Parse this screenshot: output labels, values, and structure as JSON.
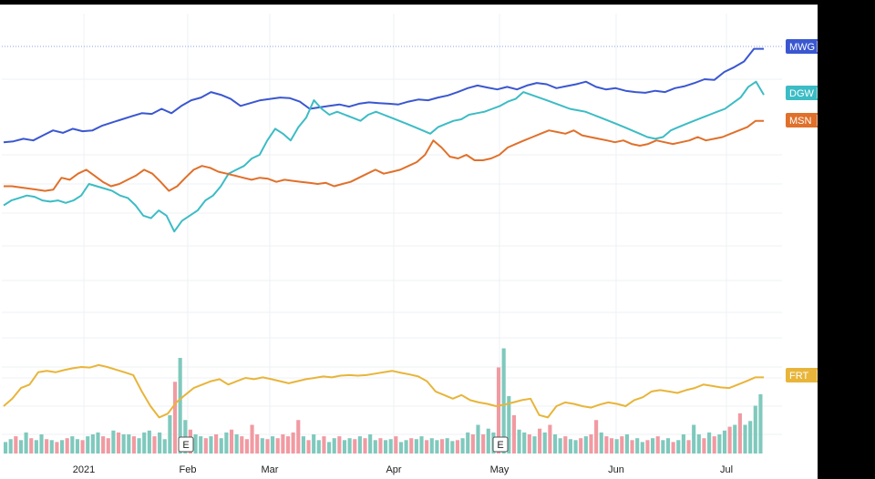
{
  "chart_data": {
    "type": "line",
    "currency": "VND",
    "y_axis_ticks": [
      150000,
      100000,
      85000,
      73000,
      61000,
      51000,
      43000,
      37000,
      34000,
      30000,
      26000,
      22400
    ],
    "x_axis_labels": [
      "2021",
      "Feb",
      "Mar",
      "Apr",
      "May",
      "Jun",
      "Jul"
    ],
    "scale": "log",
    "grid": true,
    "series": [
      {
        "name": "MWG",
        "color": "#3a57d1",
        "last_value": "176600",
        "values": [
          107000,
          107500,
          109000,
          108000,
          111000,
          114000,
          112500,
          115000,
          113500,
          114000,
          117000,
          119000,
          121000,
          123000,
          125000,
          124500,
          128000,
          125000,
          130000,
          134000,
          136000,
          140000,
          138000,
          135000,
          130000,
          132000,
          134000,
          135000,
          136000,
          135500,
          133000,
          128000,
          129000,
          130000,
          131000,
          129500,
          131500,
          132500,
          132000,
          131500,
          131000,
          133000,
          134500,
          134000,
          136000,
          137500,
          140000,
          143000,
          145000,
          143500,
          142000,
          144000,
          142000,
          145000,
          147000,
          146000,
          143000,
          144500,
          146000,
          148000,
          144000,
          142000,
          143000,
          141000,
          140000,
          139500,
          141000,
          140000,
          143000,
          144500,
          147000,
          150000,
          149500,
          156000,
          160000,
          165000,
          176600,
          176600
        ]
      },
      {
        "name": "DGW",
        "color": "#3cbcc5",
        "last_value": "138000",
        "values": [
          76000,
          78000,
          79000,
          80000,
          79500,
          78000,
          77500,
          78000,
          77000,
          78000,
          80000,
          85000,
          84000,
          83000,
          82000,
          80000,
          79000,
          76000,
          72000,
          71000,
          74000,
          72000,
          66000,
          70000,
          72000,
          74000,
          78000,
          80000,
          84000,
          90000,
          92000,
          94000,
          98000,
          100000,
          108000,
          115000,
          112000,
          108000,
          116000,
          122000,
          134000,
          128000,
          124000,
          126000,
          124000,
          122000,
          120000,
          124000,
          126000,
          124000,
          122000,
          120000,
          118000,
          116000,
          114000,
          112000,
          116000,
          118000,
          120000,
          121000,
          124000,
          125000,
          126000,
          128000,
          130000,
          133000,
          135000,
          140000,
          138000,
          136000,
          134000,
          132000,
          130000,
          128000,
          127000,
          126000,
          124000,
          122000,
          120000,
          118000,
          116000,
          114000,
          112000,
          110000,
          109000,
          110000,
          114000,
          116000,
          118000,
          120000,
          122000,
          124000,
          126000,
          128000,
          132000,
          136000,
          144000,
          148000,
          138000
        ]
      },
      {
        "name": "MSN",
        "color": "#e0702a",
        "last_value": "119900",
        "values": [
          84000,
          84000,
          83500,
          83000,
          82500,
          82000,
          82500,
          88000,
          87000,
          90000,
          92000,
          89000,
          86000,
          84000,
          85000,
          87000,
          89000,
          92000,
          90000,
          86000,
          82000,
          84000,
          88000,
          92000,
          94000,
          93000,
          91000,
          90000,
          89000,
          88000,
          87000,
          88000,
          87500,
          86000,
          87000,
          86500,
          86000,
          85500,
          85000,
          85500,
          84000,
          85000,
          86000,
          88000,
          90000,
          92000,
          90000,
          91000,
          92000,
          94000,
          96000,
          100000,
          108000,
          104000,
          99000,
          98000,
          100000,
          97000,
          97000,
          98000,
          100000,
          104000,
          106000,
          108000,
          110000,
          112000,
          114000,
          113000,
          112000,
          114000,
          111000,
          110000,
          109000,
          108000,
          107000,
          108000,
          106000,
          105000,
          106000,
          108000,
          107000,
          106000,
          107000,
          108000,
          110000,
          108000,
          109000,
          110000,
          112000,
          114000,
          116000,
          119900,
          119900
        ]
      },
      {
        "name": "FRT",
        "color": "#e8b53a",
        "last_value": "30200",
        "values": [
          26000,
          27000,
          28500,
          29000,
          32000,
          32500,
          32000,
          32800,
          33500,
          34000,
          33800,
          34200,
          34000,
          33000,
          32000,
          31000,
          28000,
          26000,
          24500,
          25000,
          26500,
          27500,
          28500,
          29000,
          29500,
          29800,
          29000,
          29500,
          30000,
          29800,
          30200,
          29800,
          29500,
          29200,
          29500,
          29800,
          30000,
          30500,
          30200,
          30800,
          31000,
          30800,
          31000,
          31500,
          32000,
          32500,
          31800,
          31200,
          30500,
          29500,
          28000,
          27500,
          27000,
          27500,
          26800,
          26500,
          26300,
          26000,
          26200,
          26500,
          26800,
          27000,
          24800,
          24500,
          26000,
          26500,
          26300,
          26000,
          25800,
          26200,
          26500,
          26300,
          26000,
          26800,
          27200,
          28000,
          28200,
          28000,
          27800,
          28200,
          28500,
          29000,
          28800,
          28600,
          28500,
          29000,
          29500,
          30200,
          30200
        ]
      }
    ],
    "volume": {
      "up_color": "#7fc9bd",
      "down_color": "#f19aa2",
      "bars": [
        {
          "h": 0.12,
          "up": true
        },
        {
          "h": 0.15,
          "up": true
        },
        {
          "h": 0.18,
          "up": false
        },
        {
          "h": 0.14,
          "up": true
        },
        {
          "h": 0.22,
          "up": true
        },
        {
          "h": 0.16,
          "up": false
        },
        {
          "h": 0.14,
          "up": true
        },
        {
          "h": 0.2,
          "up": true
        },
        {
          "h": 0.15,
          "up": false
        },
        {
          "h": 0.14,
          "up": true
        },
        {
          "h": 0.12,
          "up": false
        },
        {
          "h": 0.14,
          "up": true
        },
        {
          "h": 0.16,
          "up": false
        },
        {
          "h": 0.18,
          "up": true
        },
        {
          "h": 0.15,
          "up": true
        },
        {
          "h": 0.14,
          "up": false
        },
        {
          "h": 0.18,
          "up": true
        },
        {
          "h": 0.2,
          "up": true
        },
        {
          "h": 0.22,
          "up": true
        },
        {
          "h": 0.18,
          "up": false
        },
        {
          "h": 0.16,
          "up": false
        },
        {
          "h": 0.24,
          "up": true
        },
        {
          "h": 0.22,
          "up": false
        },
        {
          "h": 0.2,
          "up": true
        },
        {
          "h": 0.2,
          "up": true
        },
        {
          "h": 0.18,
          "up": false
        },
        {
          "h": 0.16,
          "up": true
        },
        {
          "h": 0.22,
          "up": true
        },
        {
          "h": 0.24,
          "up": true
        },
        {
          "h": 0.18,
          "up": false
        },
        {
          "h": 0.22,
          "up": true
        },
        {
          "h": 0.15,
          "up": true
        },
        {
          "h": 0.4,
          "up": true
        },
        {
          "h": 0.75,
          "up": false
        },
        {
          "h": 1.0,
          "up": true
        },
        {
          "h": 0.35,
          "up": true
        },
        {
          "h": 0.25,
          "up": false
        },
        {
          "h": 0.2,
          "up": true
        },
        {
          "h": 0.18,
          "up": true
        },
        {
          "h": 0.16,
          "up": false
        },
        {
          "h": 0.18,
          "up": true
        },
        {
          "h": 0.2,
          "up": false
        },
        {
          "h": 0.16,
          "up": true
        },
        {
          "h": 0.22,
          "up": true
        },
        {
          "h": 0.25,
          "up": false
        },
        {
          "h": 0.2,
          "up": true
        },
        {
          "h": 0.18,
          "up": false
        },
        {
          "h": 0.15,
          "up": false
        },
        {
          "h": 0.3,
          "up": false
        },
        {
          "h": 0.2,
          "up": false
        },
        {
          "h": 0.16,
          "up": true
        },
        {
          "h": 0.15,
          "up": false
        },
        {
          "h": 0.18,
          "up": true
        },
        {
          "h": 0.16,
          "up": false
        },
        {
          "h": 0.2,
          "up": false
        },
        {
          "h": 0.18,
          "up": false
        },
        {
          "h": 0.22,
          "up": false
        },
        {
          "h": 0.35,
          "up": false
        },
        {
          "h": 0.18,
          "up": true
        },
        {
          "h": 0.14,
          "up": false
        },
        {
          "h": 0.2,
          "up": true
        },
        {
          "h": 0.14,
          "up": true
        },
        {
          "h": 0.18,
          "up": false
        },
        {
          "h": 0.12,
          "up": true
        },
        {
          "h": 0.16,
          "up": true
        },
        {
          "h": 0.18,
          "up": false
        },
        {
          "h": 0.14,
          "up": true
        },
        {
          "h": 0.16,
          "up": true
        },
        {
          "h": 0.15,
          "up": false
        },
        {
          "h": 0.18,
          "up": true
        },
        {
          "h": 0.16,
          "up": false
        },
        {
          "h": 0.2,
          "up": true
        },
        {
          "h": 0.14,
          "up": true
        },
        {
          "h": 0.16,
          "up": false
        },
        {
          "h": 0.14,
          "up": true
        },
        {
          "h": 0.15,
          "up": true
        },
        {
          "h": 0.18,
          "up": false
        },
        {
          "h": 0.12,
          "up": true
        },
        {
          "h": 0.14,
          "up": true
        },
        {
          "h": 0.16,
          "up": false
        },
        {
          "h": 0.15,
          "up": true
        },
        {
          "h": 0.18,
          "up": true
        },
        {
          "h": 0.14,
          "up": false
        },
        {
          "h": 0.16,
          "up": true
        },
        {
          "h": 0.14,
          "up": true
        },
        {
          "h": 0.15,
          "up": false
        },
        {
          "h": 0.16,
          "up": true
        },
        {
          "h": 0.13,
          "up": true
        },
        {
          "h": 0.14,
          "up": false
        },
        {
          "h": 0.16,
          "up": true
        },
        {
          "h": 0.22,
          "up": true
        },
        {
          "h": 0.2,
          "up": false
        },
        {
          "h": 0.3,
          "up": true
        },
        {
          "h": 0.2,
          "up": false
        },
        {
          "h": 0.26,
          "up": true
        },
        {
          "h": 0.22,
          "up": true
        },
        {
          "h": 0.9,
          "up": false
        },
        {
          "h": 1.1,
          "up": true
        },
        {
          "h": 0.6,
          "up": true
        },
        {
          "h": 0.4,
          "up": false
        },
        {
          "h": 0.25,
          "up": true
        },
        {
          "h": 0.22,
          "up": true
        },
        {
          "h": 0.2,
          "up": false
        },
        {
          "h": 0.18,
          "up": true
        },
        {
          "h": 0.26,
          "up": false
        },
        {
          "h": 0.22,
          "up": true
        },
        {
          "h": 0.3,
          "up": false
        },
        {
          "h": 0.2,
          "up": true
        },
        {
          "h": 0.16,
          "up": true
        },
        {
          "h": 0.18,
          "up": false
        },
        {
          "h": 0.15,
          "up": true
        },
        {
          "h": 0.14,
          "up": true
        },
        {
          "h": 0.16,
          "up": false
        },
        {
          "h": 0.18,
          "up": true
        },
        {
          "h": 0.2,
          "up": false
        },
        {
          "h": 0.35,
          "up": false
        },
        {
          "h": 0.22,
          "up": true
        },
        {
          "h": 0.18,
          "up": false
        },
        {
          "h": 0.16,
          "up": false
        },
        {
          "h": 0.15,
          "up": true
        },
        {
          "h": 0.18,
          "up": false
        },
        {
          "h": 0.2,
          "up": true
        },
        {
          "h": 0.14,
          "up": false
        },
        {
          "h": 0.16,
          "up": true
        },
        {
          "h": 0.12,
          "up": true
        },
        {
          "h": 0.14,
          "up": false
        },
        {
          "h": 0.16,
          "up": true
        },
        {
          "h": 0.18,
          "up": false
        },
        {
          "h": 0.14,
          "up": true
        },
        {
          "h": 0.16,
          "up": true
        },
        {
          "h": 0.12,
          "up": false
        },
        {
          "h": 0.14,
          "up": true
        },
        {
          "h": 0.2,
          "up": true
        },
        {
          "h": 0.14,
          "up": false
        },
        {
          "h": 0.3,
          "up": true
        },
        {
          "h": 0.2,
          "up": true
        },
        {
          "h": 0.16,
          "up": false
        },
        {
          "h": 0.22,
          "up": true
        },
        {
          "h": 0.18,
          "up": false
        },
        {
          "h": 0.2,
          "up": true
        },
        {
          "h": 0.24,
          "up": true
        },
        {
          "h": 0.28,
          "up": false
        },
        {
          "h": 0.3,
          "up": true
        },
        {
          "h": 0.42,
          "up": false
        },
        {
          "h": 0.3,
          "up": true
        },
        {
          "h": 0.34,
          "up": true
        },
        {
          "h": 0.5,
          "up": true
        },
        {
          "h": 0.62,
          "up": true
        }
      ]
    },
    "earnings_markers": [
      {
        "label": "E"
      },
      {
        "label": "E"
      }
    ]
  }
}
